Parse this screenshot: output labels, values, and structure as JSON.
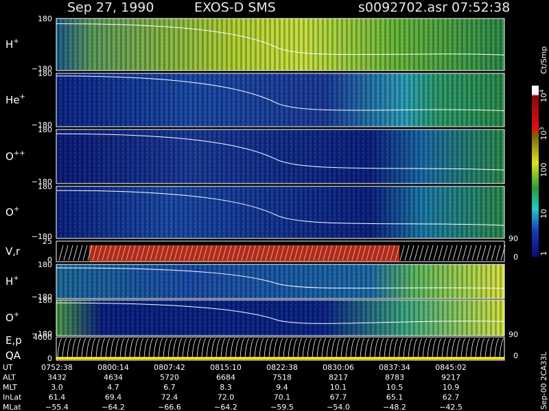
{
  "header": {
    "date": "Sep 27, 1990",
    "instrument": "EXOS-D SMS",
    "file": "s0092702.asr",
    "time": "07:52:38"
  },
  "panels": [
    {
      "label": "H",
      "sup": "+",
      "top": "180",
      "bottom": "−180"
    },
    {
      "label": "He",
      "sup": "+",
      "top": "180",
      "bottom": "−180"
    },
    {
      "label": "O",
      "sup": "++",
      "top": "180",
      "bottom": "−180"
    },
    {
      "label": "O",
      "sup": "+",
      "top": "180",
      "bottom": "−180"
    },
    {
      "label": "V,r",
      "top": "25",
      "bottom": "0",
      "right_top": "90",
      "right_bottom": "0"
    },
    {
      "label": "H",
      "sup": "+",
      "top": "180",
      "bottom": "−180"
    },
    {
      "label": "O",
      "sup": "+",
      "top": "180",
      "bottom": "−180"
    },
    {
      "label": "E,p",
      "label2": "QA",
      "top": "4000",
      "bottom": "0",
      "right_top": "90",
      "right_bottom": "0"
    }
  ],
  "colorbar": {
    "unit": "Ct/Smp",
    "labels": [
      {
        "base": "10",
        "exp": "4"
      },
      {
        "base": "10",
        "exp": "3"
      },
      "100",
      "10",
      "1"
    ]
  },
  "footer": {
    "rows": [
      {
        "label": "UT",
        "values": [
          "0752:38",
          "0800:14",
          "0807:42",
          "0815:10",
          "0822:38",
          "0830:06",
          "0837:34",
          "0845:02"
        ]
      },
      {
        "label": "ALT",
        "values": [
          "3432",
          "4634",
          "5720",
          "6684",
          "7518",
          "8217",
          "8783",
          "9217"
        ]
      },
      {
        "label": "MLT",
        "values": [
          "3.0",
          "4.7",
          "6.7",
          "8.3",
          "9.4",
          "10.1",
          "10.5",
          "10.9"
        ]
      },
      {
        "label": "InLat",
        "values": [
          "61.4",
          "69.4",
          "72.4",
          "72.0",
          "70.1",
          "67.7",
          "65.1",
          "62.7"
        ]
      },
      {
        "label": "MLat",
        "values": [
          "−55.4",
          "−64.2",
          "−66.6",
          "−64.2",
          "−59.5",
          "−54.0",
          "−48.2",
          "−42.5"
        ]
      }
    ]
  },
  "side_note": "Sep-00 2CA33L"
}
